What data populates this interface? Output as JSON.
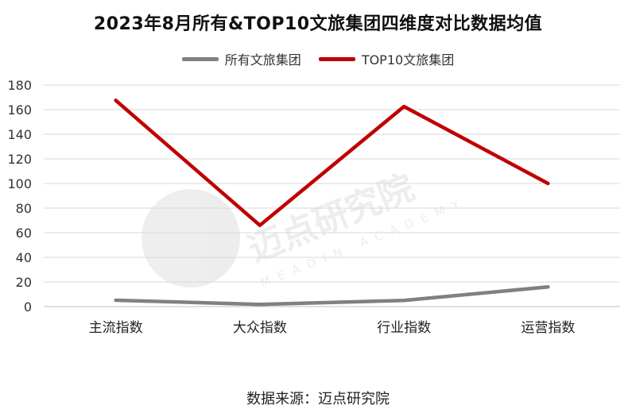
{
  "chart_data": {
    "type": "line",
    "title": "2023年8月所有&TOP10文旅集团四维度对比数据均值",
    "categories": [
      "主流指数",
      "大众指数",
      "行业指数",
      "运营指数"
    ],
    "series": [
      {
        "name": "所有文旅集团",
        "values": [
          5.2,
          1.8,
          5.0,
          16.0
        ],
        "color": "#808080"
      },
      {
        "name": "TOP10文旅集团",
        "values": [
          167.5,
          66.0,
          162.5,
          100.0
        ],
        "color": "#C00000"
      }
    ],
    "ylim": [
      0,
      180
    ],
    "yticks": [
      0,
      20,
      40,
      60,
      80,
      100,
      120,
      140,
      160,
      180
    ],
    "grid": true,
    "legend_position": "top"
  },
  "footer": {
    "source": "数据来源：迈点研究院"
  },
  "watermark": {
    "text": "迈点研究院",
    "subtext": "MEADIN ACADEMY"
  }
}
